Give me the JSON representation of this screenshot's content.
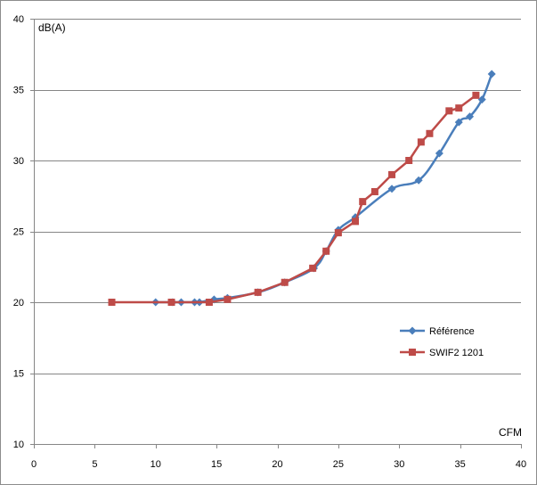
{
  "chart_data": {
    "type": "line",
    "ylabel": "dB(A)",
    "xlabel": "CFM",
    "xlim": [
      0,
      40
    ],
    "ylim": [
      10,
      40
    ],
    "xticks": [
      0,
      5,
      10,
      15,
      20,
      25,
      30,
      35,
      40
    ],
    "yticks": [
      10,
      15,
      20,
      25,
      30,
      35,
      40
    ],
    "grid": "horizontal",
    "legend": "right",
    "series": [
      {
        "name": "Référence",
        "color": "#4a7ebb",
        "marker": "diamond",
        "smooth": true,
        "points": [
          [
            10.0,
            20.0
          ],
          [
            11.4,
            20.0
          ],
          [
            12.1,
            20.0
          ],
          [
            13.2,
            20.0
          ],
          [
            13.6,
            20.0
          ],
          [
            14.8,
            20.2
          ],
          [
            15.9,
            20.3
          ],
          [
            18.4,
            20.7
          ],
          [
            20.6,
            21.4
          ],
          [
            23.0,
            22.4
          ],
          [
            24.0,
            23.6
          ],
          [
            25.0,
            25.1
          ],
          [
            26.4,
            26.0
          ],
          [
            29.4,
            28.0
          ],
          [
            31.6,
            28.6
          ],
          [
            33.3,
            30.5
          ],
          [
            34.9,
            32.7
          ],
          [
            35.8,
            33.1
          ],
          [
            36.8,
            34.3
          ],
          [
            37.6,
            36.1
          ]
        ]
      },
      {
        "name": "SWIF2 1201",
        "color": "#be4b48",
        "marker": "square",
        "smooth": false,
        "points": [
          [
            6.4,
            20.0
          ],
          [
            11.3,
            20.0
          ],
          [
            14.4,
            20.0
          ],
          [
            15.9,
            20.2
          ],
          [
            18.4,
            20.7
          ],
          [
            20.6,
            21.4
          ],
          [
            22.9,
            22.4
          ],
          [
            24.0,
            23.6
          ],
          [
            25.0,
            24.9
          ],
          [
            26.4,
            25.7
          ],
          [
            27.0,
            27.1
          ],
          [
            28.0,
            27.8
          ],
          [
            29.4,
            29.0
          ],
          [
            30.8,
            30.0
          ],
          [
            31.8,
            31.3
          ],
          [
            32.5,
            31.9
          ],
          [
            34.1,
            33.5
          ],
          [
            34.9,
            33.7
          ],
          [
            36.3,
            34.6
          ]
        ]
      }
    ]
  }
}
